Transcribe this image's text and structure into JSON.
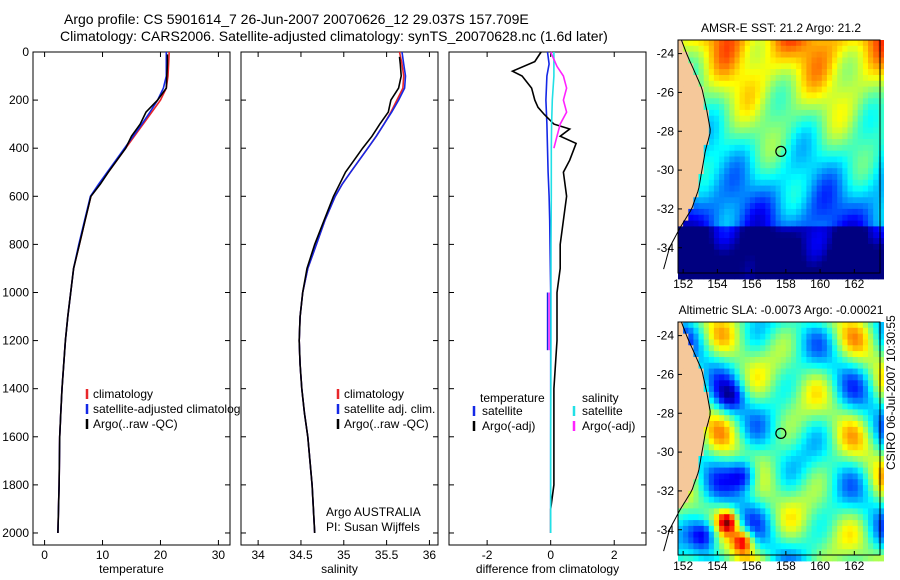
{
  "figure": {
    "title_line1": "Argo profile: CS 5901614_7 26-Jun-2007 20070626_12 29.037S 157.709E",
    "title_line2": "Climatology: CARS2006. Satellite-adjusted climatology: synTS_20070628.nc (1.6d later)",
    "credit": "CSIRO 06-Jul-2007 10:30:55",
    "colors": {
      "climatology": "#e8262a",
      "satellite": "#1428e6",
      "argo": "#000000",
      "sal_satellite": "#22e0e6",
      "sal_argo": "#ff22ff",
      "land": "#f5c89a"
    }
  },
  "chart_data": [
    {
      "type": "line",
      "name": "temperature-profile",
      "xlabel": "temperature",
      "ylabel": "",
      "xlim": [
        -2,
        32
      ],
      "ylim": [
        2050,
        0
      ],
      "xticks": [
        0,
        10,
        20,
        30
      ],
      "yticks": [
        0,
        200,
        400,
        600,
        800,
        1000,
        1200,
        1400,
        1600,
        1800,
        2000
      ],
      "legend": [
        "climatology",
        "satellite-adjusted climatolog",
        "Argo(..raw -QC)"
      ],
      "series": [
        {
          "name": "climatology",
          "color": "#e8262a",
          "x": [
            21.5,
            21.4,
            21.3,
            21.0,
            20.0,
            18.5,
            17.0,
            15.5,
            14.0,
            12.5,
            11.0,
            9.5,
            8.0,
            7.0,
            6.0,
            5.0,
            4.5,
            4.0,
            3.6,
            3.3,
            3.0,
            2.8,
            2.6,
            2.5,
            2.3
          ],
          "y": [
            0,
            50,
            100,
            150,
            200,
            250,
            300,
            350,
            400,
            450,
            500,
            550,
            600,
            700,
            800,
            900,
            1000,
            1100,
            1200,
            1300,
            1400,
            1500,
            1600,
            1800,
            2000
          ]
        },
        {
          "name": "satellite",
          "color": "#1428e6",
          "x": [
            21.0,
            21.0,
            21.0,
            20.5,
            19.5,
            18.2,
            16.8,
            15.3,
            13.8,
            12.3,
            10.8,
            9.3,
            7.9,
            6.9,
            5.9,
            5.0,
            4.5,
            4.0,
            3.6,
            3.3,
            3.0,
            2.8,
            2.6,
            2.5,
            2.3
          ],
          "y": [
            0,
            50,
            100,
            150,
            200,
            250,
            300,
            350,
            400,
            450,
            500,
            550,
            600,
            700,
            800,
            900,
            1000,
            1100,
            1200,
            1300,
            1400,
            1500,
            1600,
            1800,
            2000
          ]
        },
        {
          "name": "argo",
          "color": "#000000",
          "x": [
            21.2,
            21.2,
            21.1,
            21.0,
            19.5,
            17.5,
            16.5,
            15.0,
            14.0,
            12.5,
            11.0,
            9.6,
            8.0,
            7.0,
            6.0,
            5.0,
            4.5,
            4.0,
            3.6,
            3.3,
            3.0,
            2.8,
            2.6,
            2.5,
            2.3
          ],
          "y": [
            10,
            50,
            100,
            150,
            200,
            250,
            300,
            350,
            400,
            450,
            500,
            550,
            600,
            700,
            800,
            900,
            1000,
            1100,
            1200,
            1300,
            1400,
            1500,
            1600,
            1800,
            2000
          ]
        }
      ]
    },
    {
      "type": "line",
      "name": "salinity-profile",
      "xlabel": "salinity",
      "ylabel": "",
      "xlim": [
        33.8,
        36.1
      ],
      "ylim": [
        2050,
        0
      ],
      "xticks": [
        34,
        34.5,
        35,
        35.5,
        36
      ],
      "legend": [
        "climatology",
        "satellite adj. clim.",
        "Argo(..raw -QC)"
      ],
      "annotation": [
        "Argo AUSTRALIA",
        "PI: Susan Wijffels"
      ],
      "series": [
        {
          "name": "climatology",
          "color": "#e8262a",
          "x": [
            35.65,
            35.68,
            35.7,
            35.69,
            35.62,
            35.55,
            35.47,
            35.38,
            35.28,
            35.18,
            35.08,
            34.98,
            34.9,
            34.78,
            34.68,
            34.58,
            34.52,
            34.49,
            34.48,
            34.49,
            34.51,
            34.54,
            34.58,
            34.63,
            34.66
          ],
          "y": [
            0,
            50,
            100,
            150,
            200,
            250,
            300,
            350,
            400,
            450,
            500,
            550,
            600,
            700,
            800,
            900,
            1000,
            1100,
            1200,
            1300,
            1400,
            1500,
            1600,
            1800,
            2000
          ]
        },
        {
          "name": "satellite",
          "color": "#1428e6",
          "x": [
            35.68,
            35.7,
            35.72,
            35.71,
            35.64,
            35.56,
            35.47,
            35.38,
            35.28,
            35.18,
            35.08,
            34.98,
            34.9,
            34.78,
            34.68,
            34.58,
            34.52,
            34.49,
            34.48,
            34.49,
            34.51,
            34.54,
            34.58,
            34.63,
            34.66
          ],
          "y": [
            0,
            50,
            100,
            150,
            200,
            250,
            300,
            350,
            400,
            450,
            500,
            550,
            600,
            700,
            800,
            900,
            1000,
            1100,
            1200,
            1300,
            1400,
            1500,
            1600,
            1800,
            2000
          ]
        },
        {
          "name": "argo",
          "color": "#000000",
          "x": [
            35.65,
            35.66,
            35.67,
            35.64,
            35.55,
            35.52,
            35.42,
            35.33,
            35.22,
            35.12,
            35.02,
            34.95,
            34.88,
            34.77,
            34.66,
            34.57,
            34.52,
            34.49,
            34.48,
            34.49,
            34.51,
            34.54,
            34.58,
            34.63,
            34.66
          ],
          "y": [
            20,
            50,
            100,
            150,
            200,
            250,
            300,
            350,
            400,
            450,
            500,
            550,
            600,
            700,
            800,
            900,
            1000,
            1100,
            1200,
            1300,
            1400,
            1500,
            1600,
            1800,
            2000
          ]
        }
      ]
    },
    {
      "type": "line",
      "name": "difference-profile",
      "xlabel": "difference from climatology",
      "xlim": [
        -3.2,
        3.0
      ],
      "ylim": [
        2050,
        0
      ],
      "xticks": [
        -2,
        0,
        2
      ],
      "legend_left_title": "temperature",
      "legend_right_title": "salinity",
      "legend_left": [
        "satellite",
        "Argo(-adj)"
      ],
      "legend_right": [
        "satellite",
        "Argo(-adj)"
      ],
      "series": [
        {
          "name": "temp-satellite",
          "color": "#1428e6",
          "x": [
            -0.1,
            -0.05,
            -0.12,
            -0.15,
            -0.12,
            -0.1,
            -0.08,
            -0.05,
            -0.03,
            -0.02,
            0.0,
            0.0,
            0.0
          ],
          "y": [
            0,
            50,
            100,
            200,
            300,
            400,
            500,
            600,
            700,
            800,
            1000,
            1500,
            2000
          ]
        },
        {
          "name": "temp-argo",
          "color": "#000000",
          "x": [
            -0.3,
            -0.5,
            -1.2,
            -0.9,
            -0.6,
            -0.5,
            -0.4,
            -0.2,
            0.1,
            0.6,
            0.3,
            0.8,
            0.6,
            0.4,
            0.5,
            0.4,
            0.3,
            0.3,
            0.2,
            0.2,
            0.2,
            0.1,
            0.1,
            0.1,
            0.0,
            0.0
          ],
          "y": [
            0,
            40,
            80,
            100,
            150,
            200,
            230,
            260,
            300,
            320,
            350,
            380,
            450,
            500,
            600,
            700,
            800,
            900,
            1000,
            1100,
            1200,
            1400,
            1600,
            1800,
            1900,
            2000
          ]
        },
        {
          "name": "sal-satellite",
          "color": "#22e0e6",
          "x": [
            0.1,
            0.1,
            0.05,
            0.03,
            0.02,
            0.02,
            0.01,
            0.01,
            0.0,
            0.0
          ],
          "y": [
            0,
            100,
            200,
            300,
            400,
            600,
            800,
            1200,
            1600,
            2000
          ]
        },
        {
          "name": "sal-argo",
          "color": "#ff22ff",
          "x": [
            0.0,
            0.2,
            0.4,
            0.5,
            0.4,
            0.5,
            0.3,
            0.2,
            0.1
          ],
          "y": [
            0,
            60,
            100,
            150,
            200,
            250,
            300,
            350,
            400
          ]
        }
      ]
    },
    {
      "type": "heatmap",
      "name": "sst-map",
      "title": "AMSR-E SST: 21.2 Argo: 21.2",
      "xticks": [
        152,
        154,
        156,
        158,
        160,
        162
      ],
      "yticks": [
        -24,
        -26,
        -28,
        -30,
        -32,
        -34
      ],
      "xlim": [
        151.7,
        163.5
      ],
      "ylim": [
        -35.3,
        -23.3
      ],
      "marker": [
        157.709,
        -29.037
      ]
    },
    {
      "type": "heatmap",
      "name": "sla-map",
      "title": "Altimetric SLA: -0.0073 Argo: -0.00021",
      "xticks": [
        152,
        154,
        156,
        158,
        160,
        162
      ],
      "yticks": [
        -24,
        -26,
        -28,
        -30,
        -32,
        -34
      ],
      "xlim": [
        151.7,
        163.5
      ],
      "ylim": [
        -35.3,
        -23.3
      ],
      "marker": [
        157.709,
        -29.037
      ]
    }
  ]
}
